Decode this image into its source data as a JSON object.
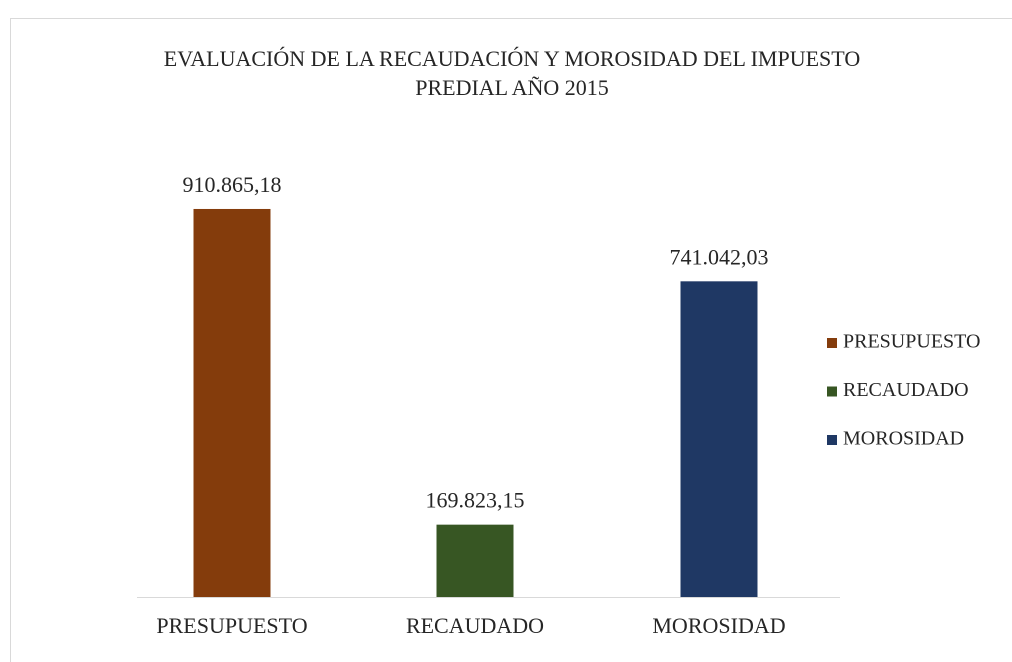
{
  "chart_data": {
    "type": "bar",
    "title": "EVALUACIÓN DE LA RECAUDACIÓN Y MOROSIDAD DEL IMPUESTO PREDIAL AÑO 2015",
    "categories": [
      "PRESUPUESTO",
      "RECAUDADO",
      "MOROSIDAD"
    ],
    "values": [
      910865.18,
      169823.15,
      741042.03
    ],
    "value_labels": [
      "910.865,18",
      "169.823,15",
      "741.042,03"
    ],
    "colors": [
      "#843c0c",
      "#375623",
      "#1f3864"
    ],
    "ylim": [
      0,
      1000000
    ],
    "legend": "right"
  }
}
